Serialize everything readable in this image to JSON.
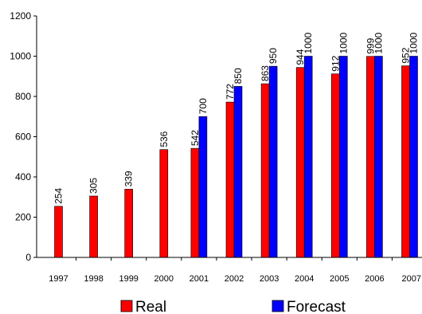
{
  "chart_data": {
    "type": "bar",
    "title": "",
    "xlabel": "",
    "ylabel": "",
    "categories": [
      "1997",
      "1998",
      "1999",
      "2000",
      "2001",
      "2002",
      "2003",
      "2004",
      "2005",
      "2006",
      "2007"
    ],
    "series": [
      {
        "name": "Real",
        "color": "#ff0000",
        "values": [
          254,
          305,
          339,
          536,
          542,
          772,
          863,
          944,
          912,
          999,
          952
        ],
        "labels": [
          "254",
          "305",
          "339",
          "536",
          "542",
          "772",
          "863",
          "944",
          "912",
          "999",
          "952"
        ]
      },
      {
        "name": "Forecast",
        "color": "#0000ff",
        "values": [
          null,
          null,
          null,
          null,
          700,
          850,
          950,
          1000,
          1000,
          1000,
          1000
        ],
        "labels": [
          "",
          "",
          "",
          "",
          "700",
          "850",
          "950",
          "1000",
          "1000",
          "1000",
          "1000"
        ]
      }
    ],
    "ylim": [
      0,
      1200
    ],
    "yticks": [
      0,
      200,
      400,
      600,
      800,
      1000,
      1200
    ],
    "ytick_labels": [
      "0",
      "200",
      "400",
      "600",
      "800",
      "1000",
      "1200"
    ],
    "grid": false,
    "legend": {
      "position": "bottom",
      "entries": [
        "Real",
        "Forecast"
      ]
    }
  }
}
